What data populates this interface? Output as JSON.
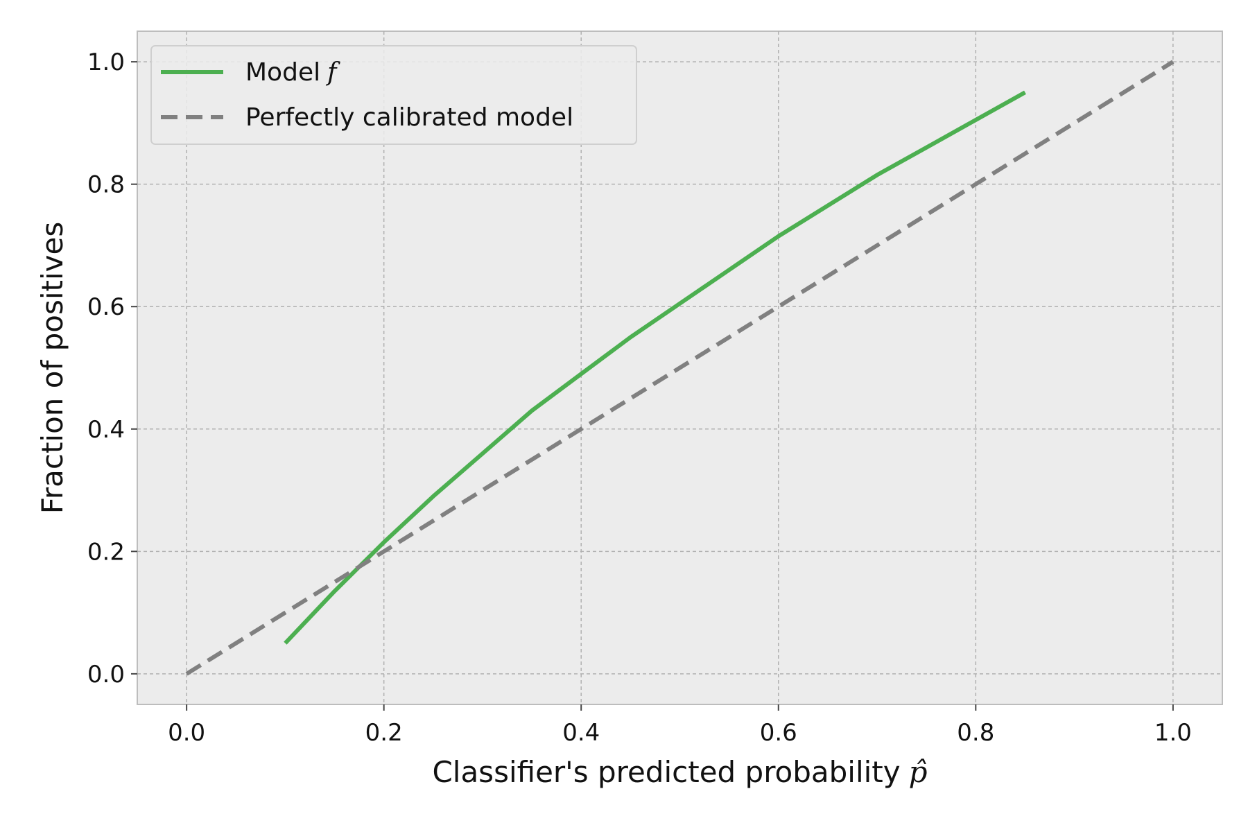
{
  "chart_data": {
    "type": "line",
    "title": "",
    "xlabel": "Classifier's predicted probability",
    "xlabel_math": "p̂",
    "ylabel": "Fraction of positives",
    "xlim": [
      -0.05,
      1.05
    ],
    "ylim": [
      -0.05,
      1.05
    ],
    "xticks": [
      "0.0",
      "0.2",
      "0.4",
      "0.6",
      "0.8",
      "1.0"
    ],
    "yticks": [
      "0.0",
      "0.2",
      "0.4",
      "0.6",
      "0.8",
      "1.0"
    ],
    "grid": true,
    "legend_position": "top-left",
    "series": [
      {
        "name": "Model",
        "name_math": "f",
        "style": "solid",
        "color": "#4caf50",
        "x": [
          0.1,
          0.15,
          0.2,
          0.25,
          0.3,
          0.35,
          0.4,
          0.45,
          0.5,
          0.55,
          0.6,
          0.65,
          0.7,
          0.75,
          0.8,
          0.85
        ],
        "y": [
          0.05,
          0.135,
          0.215,
          0.29,
          0.36,
          0.43,
          0.49,
          0.55,
          0.605,
          0.66,
          0.715,
          0.765,
          0.815,
          0.86,
          0.905,
          0.95
        ]
      },
      {
        "name": "Perfectly calibrated model",
        "style": "dashed",
        "color": "#808080",
        "x": [
          0.0,
          1.0
        ],
        "y": [
          0.0,
          1.0
        ]
      }
    ]
  }
}
